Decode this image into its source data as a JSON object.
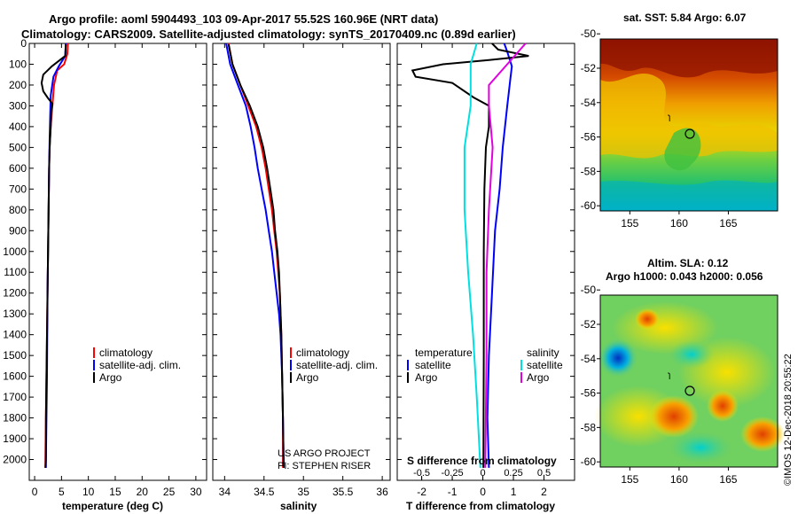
{
  "title": {
    "line1": "Argo profile: aoml 5904493_103 09-Apr-2017 55.52S 160.96E (NRT data)",
    "line2": "Climatology: CARS2009. Satellite-adjusted climatology: synTS_20170409.nc (0.89d earlier)"
  },
  "credits": {
    "project": "US ARGO PROJECT",
    "pi": "PI: STEPHEN RISER",
    "imos": "©IMOS 12-Dec-2018 20:55:22"
  },
  "colors": {
    "climatology": "#ff0000",
    "satellite": "#0000ff",
    "argo": "#000000",
    "sat_salinity": "#00e0e0",
    "argo_salinity": "#e000e0"
  },
  "chart_data": [
    {
      "id": "temperature",
      "type": "line",
      "xlabel": "temperature (deg C)",
      "ylabel": "",
      "xlim": [
        -1,
        32
      ],
      "ylim": [
        2100,
        0
      ],
      "xticks": [
        0,
        5,
        10,
        15,
        20,
        25,
        30
      ],
      "yticks": [
        0,
        100,
        200,
        300,
        400,
        500,
        600,
        700,
        800,
        900,
        1000,
        1100,
        1200,
        1300,
        1400,
        1500,
        1600,
        1700,
        1800,
        1900,
        2000
      ],
      "legend": {
        "position": "bottom-right",
        "items": [
          "climatology",
          "satellite-adj. clim.",
          "Argo"
        ]
      },
      "series": [
        {
          "name": "climatology",
          "color": "#ff0000",
          "points": [
            [
              6.2,
              0
            ],
            [
              6.1,
              50
            ],
            [
              5.5,
              100
            ],
            [
              4.2,
              130
            ],
            [
              3.6,
              200
            ],
            [
              3.3,
              300
            ],
            [
              3.0,
              400
            ],
            [
              2.8,
              500
            ],
            [
              2.7,
              600
            ],
            [
              2.6,
              800
            ],
            [
              2.5,
              1000
            ],
            [
              2.4,
              1200
            ],
            [
              2.3,
              1400
            ],
            [
              2.2,
              1600
            ],
            [
              2.1,
              1800
            ],
            [
              2.0,
              2000
            ],
            [
              2.0,
              2040
            ]
          ]
        },
        {
          "name": "satellite-adj. clim.",
          "color": "#0000ff",
          "points": [
            [
              5.8,
              0
            ],
            [
              5.7,
              60
            ],
            [
              4.5,
              110
            ],
            [
              3.5,
              160
            ],
            [
              3.0,
              250
            ],
            [
              2.9,
              350
            ],
            [
              2.8,
              450
            ],
            [
              2.7,
              600
            ],
            [
              2.6,
              800
            ],
            [
              2.5,
              1000
            ],
            [
              2.4,
              1200
            ],
            [
              2.35,
              1400
            ],
            [
              2.3,
              1600
            ],
            [
              2.2,
              1800
            ],
            [
              2.1,
              2000
            ],
            [
              2.1,
              2040
            ]
          ]
        },
        {
          "name": "Argo",
          "color": "#000000",
          "points": [
            [
              5.8,
              5
            ],
            [
              5.7,
              60
            ],
            [
              3.2,
              110
            ],
            [
              1.6,
              150
            ],
            [
              1.3,
              190
            ],
            [
              1.6,
              230
            ],
            [
              2.4,
              260
            ],
            [
              3.3,
              290
            ],
            [
              3.1,
              320
            ],
            [
              3.0,
              400
            ],
            [
              2.8,
              500
            ],
            [
              2.7,
              600
            ],
            [
              2.6,
              800
            ],
            [
              2.5,
              1000
            ],
            [
              2.4,
              1200
            ],
            [
              2.3,
              1400
            ],
            [
              2.2,
              1600
            ],
            [
              2.1,
              1800
            ],
            [
              2.1,
              2000
            ],
            [
              2.0,
              2040
            ]
          ]
        }
      ]
    },
    {
      "id": "salinity",
      "type": "line",
      "xlabel": "salinity",
      "xlim": [
        33.85,
        36.1
      ],
      "ylim": [
        2100,
        0
      ],
      "xticks": [
        34,
        34.5,
        35,
        35.5,
        36
      ],
      "legend": {
        "position": "bottom-right",
        "items": [
          "climatology",
          "satellite-adj. clim.",
          "Argo"
        ]
      },
      "series": [
        {
          "name": "climatology",
          "color": "#ff0000",
          "points": [
            [
              34.05,
              0
            ],
            [
              34.1,
              100
            ],
            [
              34.2,
              200
            ],
            [
              34.3,
              300
            ],
            [
              34.4,
              400
            ],
            [
              34.47,
              500
            ],
            [
              34.52,
              600
            ],
            [
              34.56,
              700
            ],
            [
              34.6,
              800
            ],
            [
              34.63,
              900
            ],
            [
              34.66,
              1000
            ],
            [
              34.68,
              1100
            ],
            [
              34.7,
              1200
            ],
            [
              34.72,
              1400
            ],
            [
              34.73,
              1600
            ],
            [
              34.74,
              1800
            ],
            [
              34.74,
              2040
            ]
          ]
        },
        {
          "name": "satellite-adj. clim.",
          "color": "#0000ff",
          "points": [
            [
              34.02,
              0
            ],
            [
              34.07,
              100
            ],
            [
              34.17,
              200
            ],
            [
              34.27,
              300
            ],
            [
              34.33,
              400
            ],
            [
              34.38,
              500
            ],
            [
              34.42,
              600
            ],
            [
              34.47,
              700
            ],
            [
              34.52,
              800
            ],
            [
              34.56,
              900
            ],
            [
              34.6,
              1000
            ],
            [
              34.63,
              1100
            ],
            [
              34.66,
              1200
            ],
            [
              34.69,
              1300
            ],
            [
              34.71,
              1400
            ],
            [
              34.73,
              1600
            ],
            [
              34.74,
              1800
            ],
            [
              34.75,
              2040
            ]
          ]
        },
        {
          "name": "Argo",
          "color": "#000000",
          "points": [
            [
              34.05,
              5
            ],
            [
              34.1,
              100
            ],
            [
              34.2,
              200
            ],
            [
              34.32,
              300
            ],
            [
              34.42,
              400
            ],
            [
              34.49,
              500
            ],
            [
              34.54,
              600
            ],
            [
              34.58,
              700
            ],
            [
              34.62,
              800
            ],
            [
              34.64,
              900
            ],
            [
              34.67,
              1000
            ],
            [
              34.69,
              1100
            ],
            [
              34.7,
              1200
            ],
            [
              34.72,
              1400
            ],
            [
              34.73,
              1600
            ],
            [
              34.74,
              1800
            ],
            [
              34.75,
              2040
            ]
          ]
        }
      ]
    },
    {
      "id": "difference",
      "type": "line",
      "xlabel": "T difference from climatology",
      "xlabel2": "S difference from climatology",
      "xlim": [
        -2.8,
        3
      ],
      "ylim": [
        2100,
        0
      ],
      "xticks": [
        -2,
        -1,
        0,
        1,
        2
      ],
      "xticks2": [
        -0.5,
        -0.25,
        0,
        0.25,
        0.5
      ],
      "legend": {
        "position": "bottom",
        "temperature_title": "temperature",
        "salinity_title": "salinity",
        "items": [
          "satellite",
          "Argo"
        ]
      },
      "series": [
        {
          "name": "satellite",
          "group": "temperature",
          "color": "#0000ff",
          "points": [
            [
              0.7,
              0
            ],
            [
              0.8,
              40
            ],
            [
              0.95,
              110
            ],
            [
              0.9,
              170
            ],
            [
              0.8,
              300
            ],
            [
              0.65,
              500
            ],
            [
              0.55,
              700
            ],
            [
              0.4,
              900
            ],
            [
              0.3,
              1200
            ],
            [
              0.2,
              1500
            ],
            [
              0.15,
              1800
            ],
            [
              0.2,
              2040
            ]
          ]
        },
        {
          "name": "Argo",
          "group": "temperature",
          "color": "#000000",
          "points": [
            [
              0.3,
              0
            ],
            [
              0.5,
              30
            ],
            [
              1.5,
              60
            ],
            [
              0.2,
              80
            ],
            [
              -1.3,
              100
            ],
            [
              -2.3,
              130
            ],
            [
              -2.2,
              160
            ],
            [
              -1.0,
              190
            ],
            [
              -0.3,
              260
            ],
            [
              0.2,
              300
            ],
            [
              0.2,
              400
            ],
            [
              0.1,
              500
            ],
            [
              0.05,
              700
            ],
            [
              0.03,
              1000
            ],
            [
              0.03,
              1500
            ],
            [
              0.02,
              2040
            ]
          ]
        },
        {
          "name": "satellite",
          "group": "salinity",
          "color": "#00e0e0",
          "points": [
            [
              -0.05,
              0
            ],
            [
              -0.1,
              100
            ],
            [
              -0.1,
              300
            ],
            [
              -0.15,
              500
            ],
            [
              -0.15,
              800
            ],
            [
              -0.12,
              1100
            ],
            [
              -0.08,
              1400
            ],
            [
              -0.05,
              1700
            ],
            [
              -0.02,
              2040
            ]
          ]
        },
        {
          "name": "Argo",
          "group": "salinity",
          "color": "#e000e0",
          "points": [
            [
              0.35,
              0
            ],
            [
              0.2,
              100
            ],
            [
              0.05,
              200
            ],
            [
              0.05,
              300
            ],
            [
              0.08,
              500
            ],
            [
              0.05,
              800
            ],
            [
              0.03,
              1100
            ],
            [
              0.03,
              1500
            ],
            [
              0.02,
              2040
            ]
          ]
        }
      ]
    }
  ],
  "maps": {
    "sst": {
      "title": "sat. SST: 5.84 Argo: 6.07",
      "xticks": [
        155,
        160,
        165
      ],
      "yticks": [
        -50,
        -52,
        -54,
        -56,
        -58,
        -60
      ],
      "profile_lon": 160.96,
      "profile_lat": -55.52
    },
    "sla": {
      "title1": "Altim. SLA: 0.12",
      "title2": "Argo h1000: 0.043 h2000: 0.056",
      "xticks": [
        155,
        160,
        165
      ],
      "yticks": [
        -50,
        -52,
        -54,
        -56,
        -58,
        -60
      ],
      "profile_lon": 160.96,
      "profile_lat": -55.52
    }
  }
}
